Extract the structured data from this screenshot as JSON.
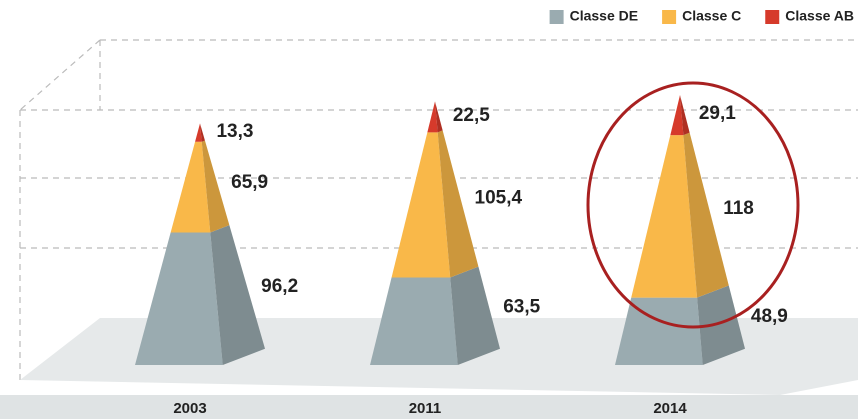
{
  "chart_data": {
    "type": "pyramid",
    "categories": [
      "2003",
      "2011",
      "2014"
    ],
    "series": [
      {
        "name": "Classe DE",
        "color": "#9aabb0",
        "values": [
          96.2,
          63.5,
          48.9
        ],
        "value_labels": [
          "96,2",
          "63,5",
          "48,9"
        ]
      },
      {
        "name": "Classe C",
        "color": "#f9b849",
        "values": [
          65.9,
          105.4,
          118
        ],
        "value_labels": [
          "65,9",
          "105,4",
          "118"
        ]
      },
      {
        "name": "Classe AB",
        "color": "#d63a2b",
        "values": [
          13.3,
          22.5,
          29.1
        ],
        "value_labels": [
          "13,3",
          "22,5",
          "29,1"
        ]
      }
    ]
  }
}
